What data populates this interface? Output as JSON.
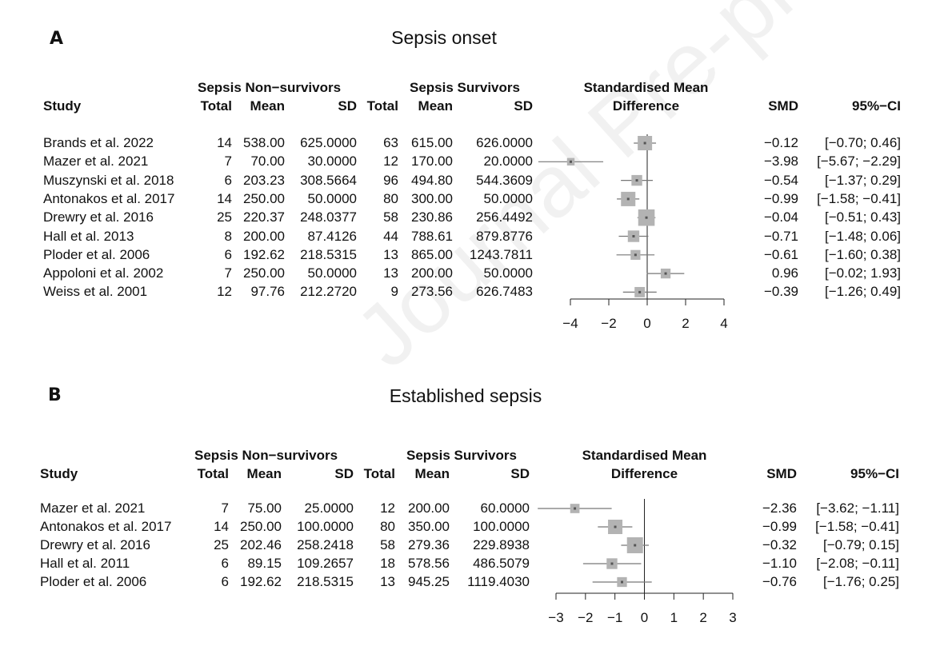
{
  "watermark": "Journal Pre-proof",
  "headers": {
    "study": "Study",
    "nonsurv_group": "Sepsis Non−survivors",
    "surv_group": "Sepsis Survivors",
    "total": "Total",
    "mean": "Mean",
    "sd": "SD",
    "smd_title_line1": "Standardised Mean",
    "smd_title_line2": "Difference",
    "smd": "SMD",
    "ci": "95%−CI"
  },
  "chart_data": [
    {
      "type": "forest",
      "panel_label": "A",
      "title": "Sepsis onset",
      "xlim": [
        -5.5,
        4
      ],
      "xticks": [
        -4,
        -2,
        0,
        2,
        4
      ],
      "xtick_labels": [
        "−4",
        "−2",
        "0",
        "2",
        "4"
      ],
      "studies": [
        {
          "study": "Brands et al. 2022",
          "n1": "14",
          "m1": "538.00",
          "sd1": "625.0000",
          "n2": "63",
          "m2": "615.00",
          "sd2": "626.0000",
          "smd": -0.12,
          "lo": -0.7,
          "hi": 0.46,
          "smd_text": "−0.12",
          "ci_text": "[−0.70; 0.46]",
          "weight": 1.0
        },
        {
          "study": "Mazer et al. 2021",
          "n1": "7",
          "m1": "70.00",
          "sd1": "30.0000",
          "n2": "12",
          "m2": "170.00",
          "sd2": "20.0000",
          "smd": -3.98,
          "lo": -5.67,
          "hi": -2.29,
          "smd_text": "−3.98",
          "ci_text": "[−5.67; −2.29]",
          "weight": 0.15
        },
        {
          "study": "Muszynski et al. 2018",
          "n1": "6",
          "m1": "203.23",
          "sd1": "308.5664",
          "n2": "96",
          "m2": "494.80",
          "sd2": "544.3609",
          "smd": -0.54,
          "lo": -1.37,
          "hi": 0.29,
          "smd_text": "−0.54",
          "ci_text": "[−1.37; 0.29]",
          "weight": 0.45
        },
        {
          "study": "Antonakos et al. 2017",
          "n1": "14",
          "m1": "250.00",
          "sd1": "50.0000",
          "n2": "80",
          "m2": "300.00",
          "sd2": "50.0000",
          "smd": -0.99,
          "lo": -1.58,
          "hi": -0.41,
          "smd_text": "−0.99",
          "ci_text": "[−1.58; −0.41]",
          "weight": 1.0
        },
        {
          "study": "Drewry et al. 2016",
          "n1": "25",
          "m1": "220.37",
          "sd1": "248.0377",
          "n2": "58",
          "m2": "230.86",
          "sd2": "256.4492",
          "smd": -0.04,
          "lo": -0.51,
          "hi": 0.43,
          "smd_text": "−0.04",
          "ci_text": "[−0.51; 0.43]",
          "weight": 1.4
        },
        {
          "study": "Hall et al. 2013",
          "n1": "8",
          "m1": "200.00",
          "sd1": "87.4126",
          "n2": "44",
          "m2": "788.61",
          "sd2": "879.8776",
          "smd": -0.71,
          "lo": -1.48,
          "hi": 0.06,
          "smd_text": "−0.71",
          "ci_text": "[−1.48; 0.06]",
          "weight": 0.55
        },
        {
          "study": "Ploder et al. 2006",
          "n1": "6",
          "m1": "192.62",
          "sd1": "218.5315",
          "n2": "13",
          "m2": "865.00",
          "sd2": "1243.7811",
          "smd": -0.61,
          "lo": -1.6,
          "hi": 0.38,
          "smd_text": "−0.61",
          "ci_text": "[−1.60; 0.38]",
          "weight": 0.35
        },
        {
          "study": "Appoloni et al. 2002",
          "n1": "7",
          "m1": "250.00",
          "sd1": "50.0000",
          "n2": "13",
          "m2": "200.00",
          "sd2": "50.0000",
          "smd": 0.96,
          "lo": -0.02,
          "hi": 1.93,
          "smd_text": "0.96",
          "ci_text": "[−0.02; 1.93]",
          "weight": 0.35
        },
        {
          "study": "Weiss et al. 2001",
          "n1": "12",
          "m1": "97.76",
          "sd1": "212.2720",
          "n2": "9",
          "m2": "273.56",
          "sd2": "626.7483",
          "smd": -0.39,
          "lo": -1.26,
          "hi": 0.49,
          "smd_text": "−0.39",
          "ci_text": "[−1.26; 0.49]",
          "weight": 0.4
        }
      ]
    },
    {
      "type": "forest",
      "panel_label": "B",
      "title": "Established sepsis",
      "xlim": [
        -3.7,
        3
      ],
      "xticks": [
        -3,
        -2,
        -1,
        0,
        1,
        2,
        3
      ],
      "xtick_labels": [
        "−3",
        "−2",
        "−1",
        "0",
        "1",
        "2",
        "3"
      ],
      "studies": [
        {
          "study": "Mazer et al. 2021",
          "n1": "7",
          "m1": "75.00",
          "sd1": "25.0000",
          "n2": "12",
          "m2": "200.00",
          "sd2": "60.0000",
          "smd": -2.36,
          "lo": -3.62,
          "hi": -1.11,
          "smd_text": "−2.36",
          "ci_text": "[−3.62; −1.11]",
          "weight": 0.3
        },
        {
          "study": "Antonakos et al. 2017",
          "n1": "14",
          "m1": "250.00",
          "sd1": "100.0000",
          "n2": "80",
          "m2": "350.00",
          "sd2": "100.0000",
          "smd": -0.99,
          "lo": -1.58,
          "hi": -0.41,
          "smd_text": "−0.99",
          "ci_text": "[−1.58; −0.41]",
          "weight": 1.0
        },
        {
          "study": "Drewry et al. 2016",
          "n1": "25",
          "m1": "202.46",
          "sd1": "258.2418",
          "n2": "58",
          "m2": "279.36",
          "sd2": "229.8938",
          "smd": -0.32,
          "lo": -0.79,
          "hi": 0.15,
          "smd_text": "−0.32",
          "ci_text": "[−0.79; 0.15]",
          "weight": 1.3
        },
        {
          "study": "Hall et al. 2011",
          "n1": "6",
          "m1": "89.15",
          "sd1": "109.2657",
          "n2": "18",
          "m2": "578.56",
          "sd2": "486.5079",
          "smd": -1.1,
          "lo": -2.08,
          "hi": -0.11,
          "smd_text": "−1.10",
          "ci_text": "[−2.08; −0.11]",
          "weight": 0.45
        },
        {
          "study": "Ploder et al. 2006",
          "n1": "6",
          "m1": "192.62",
          "sd1": "218.5315",
          "n2": "13",
          "m2": "945.25",
          "sd2": "1119.4030",
          "smd": -0.76,
          "lo": -1.76,
          "hi": 0.25,
          "smd_text": "−0.76",
          "ci_text": "[−1.76; 0.25]",
          "weight": 0.35
        }
      ]
    }
  ]
}
